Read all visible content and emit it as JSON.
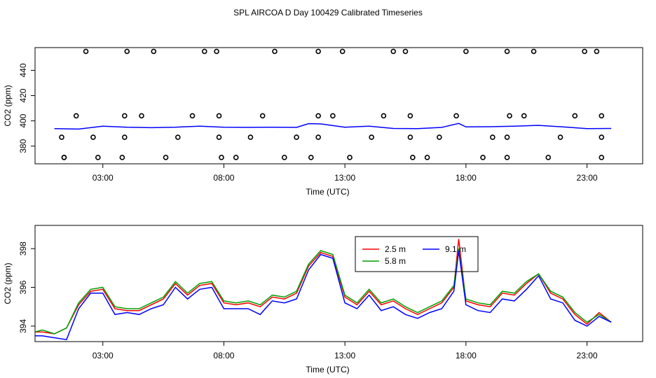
{
  "title": "SPL AIRCOA D  Day 100429  Calibrated Timeseries",
  "chart_data": [
    {
      "type": "line",
      "ylabel": "CO2 (ppm)",
      "xlabel": "Time (UTC)",
      "xlim": [
        0.2,
        25.3
      ],
      "ylim": [
        366,
        458
      ],
      "xticks": [
        {
          "v": 3,
          "label": "03:00"
        },
        {
          "v": 8,
          "label": "08:00"
        },
        {
          "v": 13,
          "label": "13:00"
        },
        {
          "v": 18,
          "label": "18:00"
        },
        {
          "v": 23,
          "label": "23:00"
        }
      ],
      "yticks": [
        {
          "v": 380,
          "label": "380"
        },
        {
          "v": 400,
          "label": "400"
        },
        {
          "v": 420,
          "label": "420"
        },
        {
          "v": 440,
          "label": "440"
        }
      ],
      "series": [
        {
          "color": "#0000ff",
          "x": [
            1,
            2,
            3,
            4,
            5,
            6,
            7,
            8,
            9,
            10,
            11,
            11.5,
            12,
            13,
            14,
            15,
            16,
            17,
            17.7,
            18,
            19,
            20,
            21,
            22,
            23,
            24
          ],
          "y": [
            393.8,
            393.5,
            395.8,
            395,
            394.6,
            395,
            395.8,
            395,
            394.8,
            395,
            394.8,
            397.8,
            397.6,
            395,
            395.8,
            394,
            393.8,
            394.8,
            398,
            395.2,
            395.4,
            395.8,
            396.4,
            395.2,
            393.8,
            394
          ]
        }
      ],
      "points": [
        {
          "x": 1.4,
          "y": 371
        },
        {
          "x": 2.3,
          "y": 455
        },
        {
          "x": 4,
          "y": 455
        },
        {
          "x": 5.1,
          "y": 455
        },
        {
          "x": 7.2,
          "y": 455
        },
        {
          "x": 7.7,
          "y": 455
        },
        {
          "x": 10.1,
          "y": 455
        },
        {
          "x": 11.9,
          "y": 455
        },
        {
          "x": 12.9,
          "y": 455
        },
        {
          "x": 15,
          "y": 455
        },
        {
          "x": 15.5,
          "y": 455
        },
        {
          "x": 18,
          "y": 455
        },
        {
          "x": 19.7,
          "y": 455
        },
        {
          "x": 20.8,
          "y": 455
        },
        {
          "x": 22.9,
          "y": 455
        },
        {
          "x": 23.4,
          "y": 455
        },
        {
          "x": 1.9,
          "y": 404
        },
        {
          "x": 3.9,
          "y": 404
        },
        {
          "x": 4.6,
          "y": 404
        },
        {
          "x": 6.7,
          "y": 404
        },
        {
          "x": 7.8,
          "y": 404
        },
        {
          "x": 9.6,
          "y": 404
        },
        {
          "x": 11.9,
          "y": 404
        },
        {
          "x": 12.5,
          "y": 404
        },
        {
          "x": 14.6,
          "y": 404
        },
        {
          "x": 15.7,
          "y": 404
        },
        {
          "x": 17.6,
          "y": 404
        },
        {
          "x": 19.8,
          "y": 404
        },
        {
          "x": 20.4,
          "y": 404
        },
        {
          "x": 22.5,
          "y": 404
        },
        {
          "x": 23.6,
          "y": 404
        },
        {
          "x": 1.3,
          "y": 387
        },
        {
          "x": 2.6,
          "y": 387
        },
        {
          "x": 3.9,
          "y": 387
        },
        {
          "x": 6.1,
          "y": 387
        },
        {
          "x": 7.8,
          "y": 387
        },
        {
          "x": 9.1,
          "y": 387
        },
        {
          "x": 11,
          "y": 387
        },
        {
          "x": 11.9,
          "y": 387
        },
        {
          "x": 14.1,
          "y": 387
        },
        {
          "x": 15.7,
          "y": 387
        },
        {
          "x": 16.9,
          "y": 387
        },
        {
          "x": 19.1,
          "y": 387
        },
        {
          "x": 19.7,
          "y": 387
        },
        {
          "x": 21.9,
          "y": 387
        },
        {
          "x": 23.6,
          "y": 387
        },
        {
          "x": 1.4,
          "y": 371
        },
        {
          "x": 2.8,
          "y": 371
        },
        {
          "x": 3.8,
          "y": 371
        },
        {
          "x": 5.6,
          "y": 371
        },
        {
          "x": 7.9,
          "y": 371
        },
        {
          "x": 8.5,
          "y": 371
        },
        {
          "x": 10.5,
          "y": 371
        },
        {
          "x": 11.6,
          "y": 371
        },
        {
          "x": 13.2,
          "y": 371
        },
        {
          "x": 15.8,
          "y": 371
        },
        {
          "x": 16.4,
          "y": 371
        },
        {
          "x": 18.7,
          "y": 371
        },
        {
          "x": 19.7,
          "y": 371
        },
        {
          "x": 21.4,
          "y": 371
        },
        {
          "x": 23.6,
          "y": 371
        }
      ]
    },
    {
      "type": "line",
      "ylabel": "CO2 (ppm)",
      "xlabel": "Time (UTC)",
      "xlim": [
        0.2,
        25.3
      ],
      "ylim": [
        393.2,
        399.2
      ],
      "xticks": [
        {
          "v": 3,
          "label": "03:00"
        },
        {
          "v": 8,
          "label": "08:00"
        },
        {
          "v": 13,
          "label": "13:00"
        },
        {
          "v": 18,
          "label": "18:00"
        },
        {
          "v": 23,
          "label": "23:00"
        }
      ],
      "yticks": [
        {
          "v": 394,
          "label": "394"
        },
        {
          "v": 396,
          "label": "396"
        },
        {
          "v": 398,
          "label": "398"
        }
      ],
      "series": [
        {
          "name": "2.5 m",
          "color": "#ff0000",
          "x": [
            0.2,
            0.5,
            1,
            1.5,
            2,
            2.5,
            3,
            3.5,
            4,
            4.5,
            5,
            5.5,
            6,
            6.5,
            7,
            7.5,
            8,
            8.5,
            9,
            9.5,
            10,
            10.5,
            11,
            11.5,
            12,
            12.5,
            13,
            13.5,
            14,
            14.5,
            15,
            15.5,
            16,
            16.5,
            17,
            17.5,
            17.7,
            18,
            18.5,
            19,
            19.5,
            20,
            20.5,
            21,
            21.5,
            22,
            22.5,
            23,
            23.5,
            24
          ],
          "y": [
            393.7,
            393.7,
            393.6,
            393.9,
            395.1,
            395.8,
            395.9,
            394.9,
            394.8,
            394.8,
            395.1,
            395.4,
            396.2,
            395.6,
            396.1,
            396.2,
            395.2,
            395.1,
            395.2,
            395.0,
            395.5,
            395.4,
            395.7,
            397.1,
            397.8,
            397.6,
            395.5,
            395.1,
            395.8,
            395.1,
            395.3,
            394.9,
            394.6,
            394.9,
            395.2,
            396.0,
            398.5,
            395.3,
            395.1,
            395.0,
            395.7,
            395.6,
            396.2,
            396.7,
            395.7,
            395.4,
            394.6,
            394.1,
            394.7,
            394.2
          ]
        },
        {
          "name": "5.8 m",
          "color": "#00a000",
          "x": [
            0.2,
            0.5,
            1,
            1.5,
            2,
            2.5,
            3,
            3.5,
            4,
            4.5,
            5,
            5.5,
            6,
            6.5,
            7,
            7.5,
            8,
            8.5,
            9,
            9.5,
            10,
            10.5,
            11,
            11.5,
            12,
            12.5,
            13,
            13.5,
            14,
            14.5,
            15,
            15.5,
            16,
            16.5,
            17,
            17.5,
            17.7,
            18,
            18.5,
            19,
            19.5,
            20,
            20.5,
            21,
            21.5,
            22,
            22.5,
            23,
            23.5,
            24
          ],
          "y": [
            393.7,
            393.8,
            393.6,
            393.9,
            395.2,
            395.9,
            396.0,
            395.0,
            394.9,
            394.9,
            395.2,
            395.5,
            396.3,
            395.7,
            396.2,
            396.3,
            395.3,
            395.2,
            395.3,
            395.1,
            395.6,
            395.5,
            395.8,
            397.2,
            397.9,
            397.7,
            395.6,
            395.2,
            395.9,
            395.2,
            395.4,
            395.0,
            394.7,
            395.0,
            395.3,
            396.1,
            398.0,
            395.4,
            395.2,
            395.1,
            395.8,
            395.7,
            396.3,
            396.7,
            395.8,
            395.5,
            394.7,
            394.2,
            394.6,
            394.2
          ]
        },
        {
          "name": "9.1 m",
          "color": "#0000ff",
          "x": [
            0.2,
            0.5,
            1,
            1.5,
            2,
            2.5,
            3,
            3.5,
            4,
            4.5,
            5,
            5.5,
            6,
            6.5,
            7,
            7.5,
            8,
            8.5,
            9,
            9.5,
            10,
            10.5,
            11,
            11.5,
            12,
            12.5,
            13,
            13.5,
            14,
            14.5,
            15,
            15.5,
            16,
            16.5,
            17,
            17.5,
            17.7,
            18,
            18.5,
            19,
            19.5,
            20,
            20.5,
            21,
            21.5,
            22,
            22.5,
            23,
            23.5,
            24
          ],
          "y": [
            393.5,
            393.5,
            393.4,
            393.3,
            394.9,
            395.7,
            395.7,
            394.6,
            394.7,
            394.6,
            394.9,
            395.1,
            396.0,
            395.4,
            395.9,
            396.0,
            394.9,
            394.9,
            394.9,
            394.6,
            395.3,
            395.2,
            395.4,
            396.9,
            397.7,
            397.5,
            395.2,
            394.9,
            395.6,
            394.8,
            395.0,
            394.6,
            394.4,
            394.7,
            394.9,
            395.8,
            397.9,
            395.1,
            394.8,
            394.7,
            395.4,
            395.3,
            395.9,
            396.6,
            395.4,
            395.2,
            394.3,
            394.0,
            394.5,
            394.2
          ]
        }
      ],
      "legend": {
        "position": "top-center"
      }
    }
  ]
}
